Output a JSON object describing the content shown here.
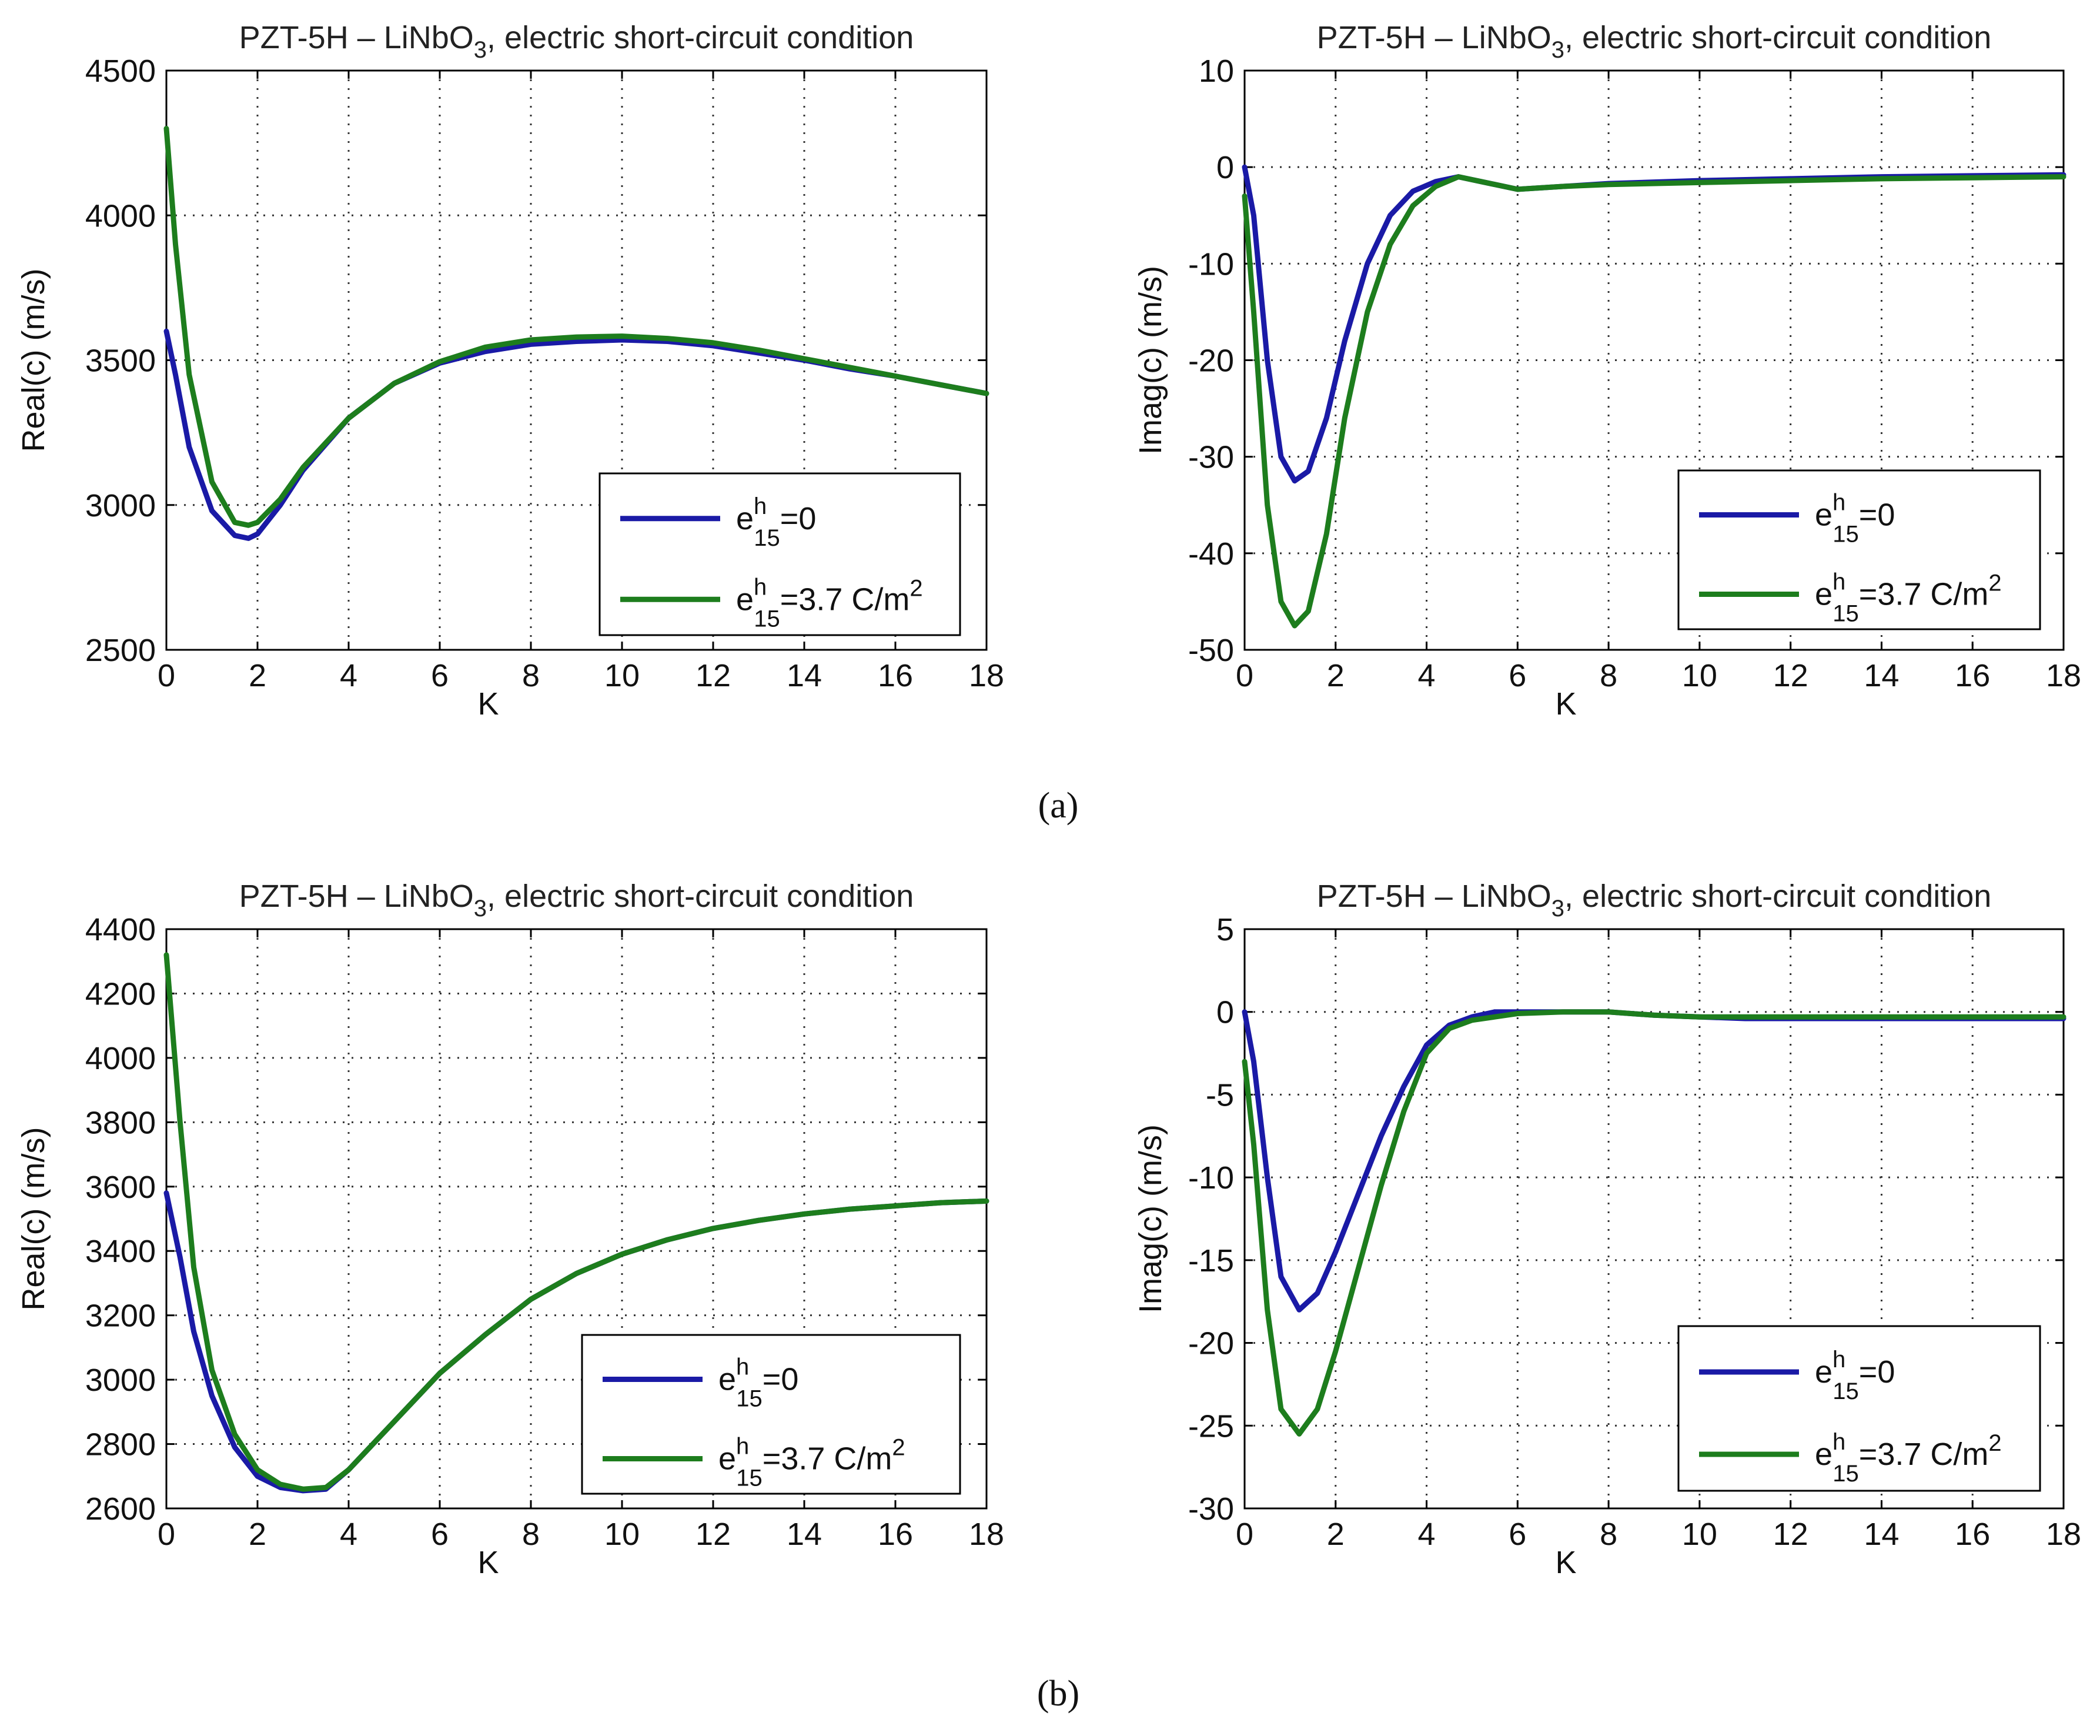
{
  "captions": {
    "a": "(a)",
    "b": "(b)"
  },
  "legend_entries": [
    {
      "base": "e",
      "sup": "h",
      "sub": "15",
      "tail": "=0",
      "color": "#1a1aa6"
    },
    {
      "base": "e",
      "sup": "h",
      "sub": "15",
      "tail": "=3.7 C/m",
      "tail_sup": "2",
      "color": "#1d7d1d"
    }
  ],
  "chart_data": [
    {
      "id": "a-real",
      "type": "line",
      "title": {
        "pre": "PZT-5H – LiNbO",
        "sub": "3",
        "post": ", electric short-circuit condition"
      },
      "xlabel": "K",
      "ylabel": "Real(c) (m/s)",
      "xlim": [
        0,
        18
      ],
      "ylim": [
        2500,
        4500
      ],
      "xticks": [
        0,
        2,
        4,
        6,
        8,
        10,
        12,
        14,
        16,
        18
      ],
      "yticks": [
        2500,
        3000,
        3500,
        4000,
        4500
      ],
      "grid": true,
      "legend_position": "lower-right",
      "series": [
        {
          "name": "e15h=0",
          "color": "#1a1aa6",
          "x": [
            0,
            0.2,
            0.5,
            1,
            1.5,
            1.8,
            2,
            2.5,
            3,
            4,
            5,
            6,
            7,
            8,
            9,
            10,
            11,
            12,
            13,
            14,
            15,
            16,
            17,
            18
          ],
          "y": [
            3600,
            3450,
            3200,
            2980,
            2895,
            2885,
            2900,
            3000,
            3120,
            3300,
            3420,
            3490,
            3530,
            3555,
            3565,
            3570,
            3565,
            3550,
            3525,
            3500,
            3470,
            3445,
            3415,
            3385
          ]
        },
        {
          "name": "e15h=3.7 C/m2",
          "color": "#1d7d1d",
          "x": [
            0,
            0.2,
            0.5,
            1,
            1.5,
            1.8,
            2,
            2.5,
            3,
            4,
            5,
            6,
            7,
            8,
            9,
            10,
            11,
            12,
            13,
            14,
            15,
            16,
            17,
            18
          ],
          "y": [
            4300,
            3900,
            3450,
            3080,
            2940,
            2930,
            2940,
            3020,
            3130,
            3300,
            3420,
            3495,
            3545,
            3570,
            3580,
            3583,
            3575,
            3560,
            3535,
            3505,
            3475,
            3445,
            3415,
            3385
          ]
        }
      ]
    },
    {
      "id": "a-imag",
      "type": "line",
      "title": {
        "pre": "PZT-5H – LiNbO",
        "sub": "3",
        "post": ", electric short-circuit condition"
      },
      "xlabel": "K",
      "ylabel": "Imag(c) (m/s)",
      "xlim": [
        0,
        18
      ],
      "ylim": [
        -50,
        10
      ],
      "xticks": [
        0,
        2,
        4,
        6,
        8,
        10,
        12,
        14,
        16,
        18
      ],
      "yticks": [
        -50,
        -40,
        -30,
        -20,
        -10,
        0,
        10
      ],
      "grid": true,
      "legend_position": "lower-right",
      "series": [
        {
          "name": "e15h=0",
          "color": "#1a1aa6",
          "x": [
            0,
            0.2,
            0.5,
            0.8,
            1.1,
            1.4,
            1.8,
            2.2,
            2.7,
            3.2,
            3.7,
            4.2,
            4.7,
            5.2,
            6,
            7,
            8,
            10,
            12,
            14,
            16,
            18
          ],
          "y": [
            0,
            -5,
            -20,
            -30,
            -32.5,
            -31.5,
            -26,
            -18,
            -10,
            -5,
            -2.5,
            -1.5,
            -1,
            -1.5,
            -2.3,
            -2,
            -1.7,
            -1.4,
            -1.2,
            -1,
            -0.9,
            -0.8
          ]
        },
        {
          "name": "e15h=3.7 C/m2",
          "color": "#1d7d1d",
          "x": [
            0,
            0.2,
            0.5,
            0.8,
            1.1,
            1.4,
            1.8,
            2.2,
            2.7,
            3.2,
            3.7,
            4.2,
            4.7,
            5.2,
            6,
            7,
            8,
            10,
            12,
            14,
            16,
            18
          ],
          "y": [
            -3,
            -15,
            -35,
            -45,
            -47.5,
            -46,
            -38,
            -26,
            -15,
            -8,
            -4,
            -2,
            -1,
            -1.5,
            -2.3,
            -2,
            -1.8,
            -1.6,
            -1.4,
            -1.2,
            -1.1,
            -1
          ]
        }
      ]
    },
    {
      "id": "b-real",
      "type": "line",
      "title": {
        "pre": "PZT-5H – LiNbO",
        "sub": "3",
        "post": ", electric short-circuit condition"
      },
      "xlabel": "K",
      "ylabel": "Real(c) (m/s)",
      "xlim": [
        0,
        18
      ],
      "ylim": [
        2600,
        4400
      ],
      "xticks": [
        0,
        2,
        4,
        6,
        8,
        10,
        12,
        14,
        16,
        18
      ],
      "yticks": [
        2600,
        2800,
        3000,
        3200,
        3400,
        3600,
        3800,
        4000,
        4200,
        4400
      ],
      "grid": true,
      "legend_position": "lower-right",
      "series": [
        {
          "name": "e15h=0",
          "color": "#1a1aa6",
          "x": [
            0,
            0.3,
            0.6,
            1,
            1.5,
            2,
            2.5,
            3,
            3.5,
            4,
            5,
            6,
            7,
            8,
            9,
            10,
            11,
            12,
            13,
            14,
            15,
            16,
            17,
            18
          ],
          "y": [
            3580,
            3380,
            3150,
            2950,
            2790,
            2700,
            2665,
            2655,
            2660,
            2720,
            2870,
            3020,
            3140,
            3250,
            3330,
            3390,
            3435,
            3470,
            3495,
            3515,
            3530,
            3540,
            3550,
            3555
          ]
        },
        {
          "name": "e15h=3.7 C/m2",
          "color": "#1d7d1d",
          "x": [
            0,
            0.3,
            0.6,
            1,
            1.5,
            2,
            2.5,
            3,
            3.5,
            4,
            5,
            6,
            7,
            8,
            9,
            10,
            11,
            12,
            13,
            14,
            15,
            16,
            17,
            18
          ],
          "y": [
            4320,
            3800,
            3350,
            3030,
            2830,
            2720,
            2675,
            2660,
            2665,
            2720,
            2870,
            3020,
            3140,
            3250,
            3330,
            3390,
            3435,
            3470,
            3495,
            3515,
            3530,
            3540,
            3550,
            3555
          ]
        }
      ]
    },
    {
      "id": "b-imag",
      "type": "line",
      "title": {
        "pre": "PZT-5H – LiNbO",
        "sub": "3",
        "post": ", electric short-circuit condition"
      },
      "xlabel": "K",
      "ylabel": "Imag(c) (m/s)",
      "xlim": [
        0,
        18
      ],
      "ylim": [
        -30,
        5
      ],
      "xticks": [
        0,
        2,
        4,
        6,
        8,
        10,
        12,
        14,
        16,
        18
      ],
      "yticks": [
        -30,
        -25,
        -20,
        -15,
        -10,
        -5,
        0,
        5
      ],
      "grid": true,
      "legend_position": "lower-right",
      "series": [
        {
          "name": "e15h=0",
          "color": "#1a1aa6",
          "x": [
            0,
            0.2,
            0.5,
            0.8,
            1.2,
            1.6,
            2,
            2.5,
            3,
            3.5,
            4,
            4.5,
            5,
            5.5,
            6,
            7,
            8,
            9,
            10,
            11,
            12,
            14,
            16,
            18
          ],
          "y": [
            0,
            -3,
            -10,
            -16,
            -18,
            -17,
            -14.5,
            -11,
            -7.5,
            -4.5,
            -2,
            -0.8,
            -0.3,
            0,
            0,
            0,
            0,
            -0.2,
            -0.3,
            -0.4,
            -0.4,
            -0.4,
            -0.4,
            -0.4
          ]
        },
        {
          "name": "e15h=3.7 C/m2",
          "color": "#1d7d1d",
          "x": [
            0,
            0.2,
            0.5,
            0.8,
            1.2,
            1.6,
            2,
            2.5,
            3,
            3.5,
            4,
            4.5,
            5,
            5.5,
            6,
            7,
            8,
            9,
            10,
            11,
            12,
            14,
            16,
            18
          ],
          "y": [
            -3,
            -8,
            -18,
            -24,
            -25.5,
            -24,
            -20.5,
            -15.5,
            -10.5,
            -6,
            -2.5,
            -1,
            -0.5,
            -0.3,
            -0.1,
            0,
            0,
            -0.2,
            -0.3,
            -0.3,
            -0.3,
            -0.3,
            -0.3,
            -0.3
          ]
        }
      ]
    }
  ]
}
